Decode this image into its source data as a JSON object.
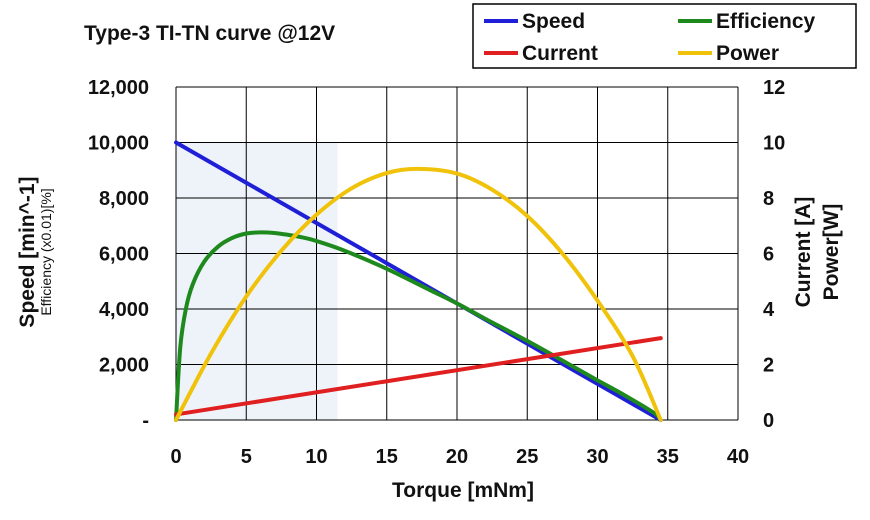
{
  "chart_data": {
    "type": "line",
    "title": "Type-3 TI-TN curve @12V",
    "xlabel": "Torque [mNm]",
    "ylabel": "Speed [min^-1]",
    "ylabel_sub": "Efficiency (x0.01)[%]",
    "y2label_1": "Current [A]",
    "y2label_2": "Power[W]",
    "xlim": [
      0,
      40
    ],
    "ylim": [
      0,
      12000
    ],
    "y2lim": [
      0,
      12
    ],
    "x_ticks": [
      "0",
      "5",
      "10",
      "15",
      "20",
      "25",
      "30",
      "35",
      "40"
    ],
    "y_ticks": [
      "-",
      "2,000",
      "4,000",
      "6,000",
      "8,000",
      "10,000",
      "12,000"
    ],
    "y2_ticks": [
      "0",
      "2",
      "4",
      "6",
      "8",
      "10",
      "12"
    ],
    "grid": true,
    "legend_position": "top-right",
    "shaded_region": {
      "x": [
        0,
        11.5
      ],
      "y": [
        0,
        10000
      ]
    },
    "series": [
      {
        "name": "Speed",
        "axis": "left",
        "color": "#1f1fd8",
        "x": [
          0,
          5,
          10,
          15,
          20,
          25,
          30,
          34.5
        ],
        "y": [
          10000,
          8550,
          7100,
          5650,
          4200,
          2750,
          1300,
          0
        ]
      },
      {
        "name": "Efficiency",
        "axis": "left",
        "color": "#1e8a1e",
        "x": [
          0,
          0.3,
          0.7,
          1.2,
          2,
          3,
          4,
          5,
          6,
          7,
          8,
          9,
          10,
          12,
          15,
          18,
          20,
          22,
          25,
          28,
          30,
          32,
          34,
          34.5
        ],
        "y": [
          0,
          2600,
          4000,
          4900,
          5700,
          6250,
          6560,
          6720,
          6760,
          6740,
          6670,
          6580,
          6450,
          6100,
          5450,
          4700,
          4200,
          3650,
          2850,
          2000,
          1430,
          870,
          260,
          0
        ]
      },
      {
        "name": "Current",
        "axis": "right",
        "color": "#e02020",
        "x": [
          0,
          34.5
        ],
        "y": [
          0.2,
          2.95
        ]
      },
      {
        "name": "Power",
        "axis": "right",
        "color": "#f0c20a",
        "x": [
          0,
          2.5,
          5,
          7.5,
          10,
          12.5,
          15,
          17.25,
          20,
          22.5,
          25,
          27.5,
          30,
          32.5,
          34.5
        ],
        "y": [
          0,
          2.4,
          4.45,
          6.1,
          7.4,
          8.35,
          8.9,
          9.05,
          8.88,
          8.3,
          7.35,
          6.0,
          4.3,
          2.3,
          0
        ]
      }
    ]
  }
}
